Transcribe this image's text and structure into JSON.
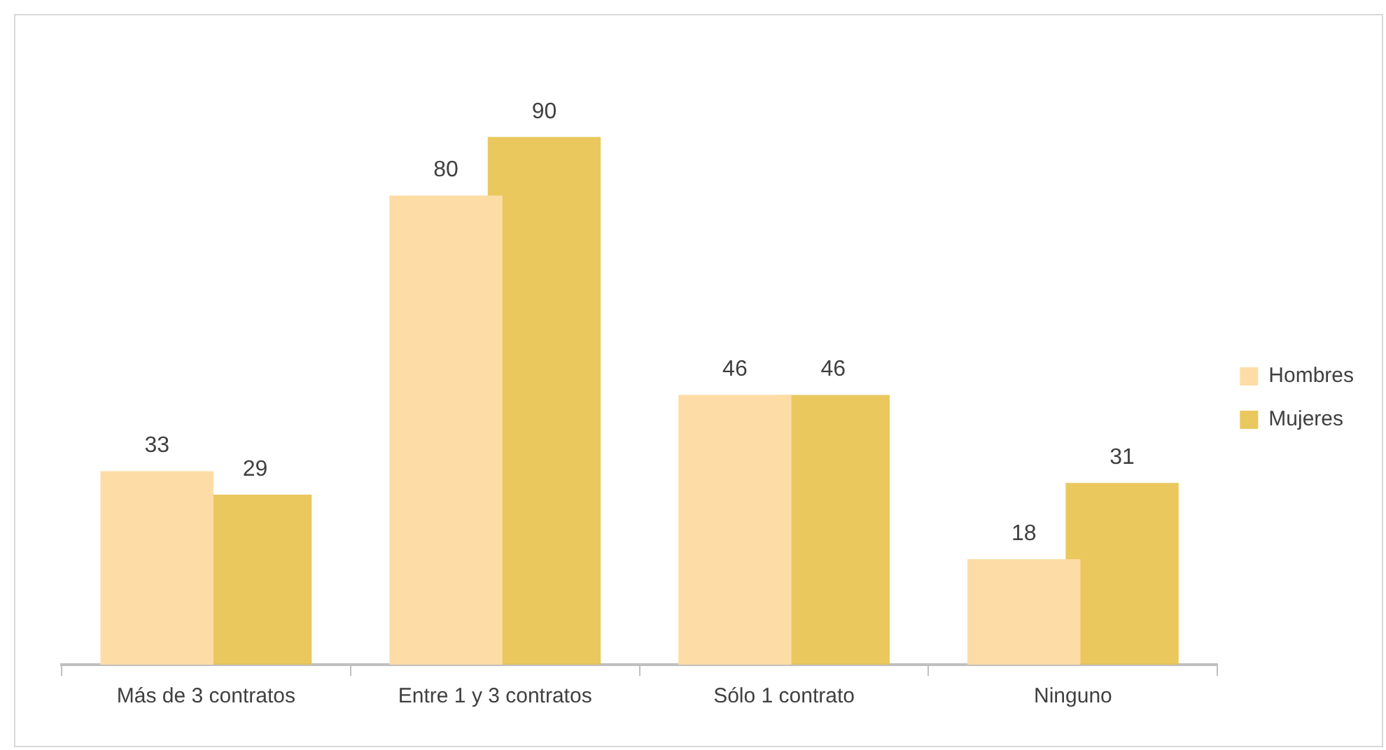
{
  "chart_data": {
    "type": "bar",
    "categories": [
      "Más de 3 contratos",
      "Entre 1 y 3 contratos",
      "Sólo 1 contrato",
      "Ninguno"
    ],
    "series": [
      {
        "name": "Hombres",
        "color": "#fddda5",
        "values": [
          33,
          80,
          46,
          18
        ]
      },
      {
        "name": "Mujeres",
        "color": "#e8c24c",
        "values": [
          29,
          90,
          46,
          31
        ]
      }
    ],
    "relative": false,
    "data_labels": true,
    "legend": "right",
    "grid": false
  }
}
